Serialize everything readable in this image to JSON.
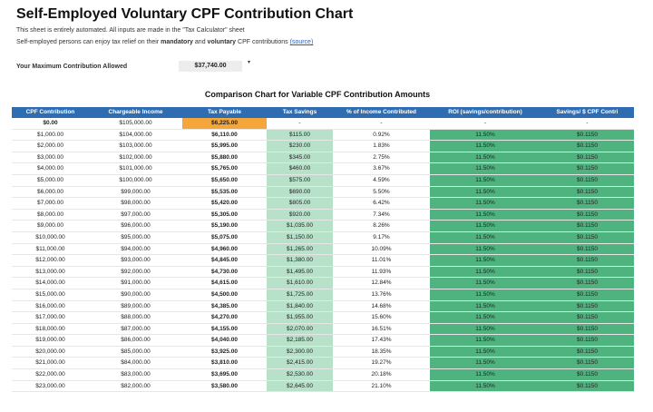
{
  "header": {
    "title": "Self-Employed Voluntary CPF Contribution Chart",
    "note": "This sheet is entirely automated. All inputs are made in the \"Tax Calculator\" sheet",
    "desc_prefix": "Self-employed persons can enjoy tax relief on their",
    "desc_bold1": "mandatory",
    "desc_and": "and",
    "desc_bold2": "voluntary",
    "desc_suffix": "CPF contributions",
    "source_link": "(source)"
  },
  "max_contribution": {
    "label": "Your Maximum Contribution Allowed",
    "value": "$37,740.00",
    "marker": "▾"
  },
  "chart": {
    "title": "Comparison Chart for Variable CPF Contribution Amounts",
    "columns": [
      "CPF Contribution",
      "Chargeable Income",
      "Tax Payable",
      "Tax Savings",
      "% of Income Contributed",
      "ROI (savings/contribution)",
      "Savings/ $ CPF Contri"
    ],
    "rows": [
      [
        "$0.00",
        "$105,000.00",
        "$6,225.00",
        "-",
        "-",
        "-",
        "-"
      ],
      [
        "$1,000.00",
        "$104,000.00",
        "$6,110.00",
        "$115.00",
        "0.92%",
        "11.50%",
        "$0.1150"
      ],
      [
        "$2,000.00",
        "$103,000.00",
        "$5,995.00",
        "$230.00",
        "1.83%",
        "11.50%",
        "$0.1150"
      ],
      [
        "$3,000.00",
        "$102,000.00",
        "$5,880.00",
        "$345.00",
        "2.75%",
        "11.50%",
        "$0.1150"
      ],
      [
        "$4,000.00",
        "$101,000.00",
        "$5,765.00",
        "$460.00",
        "3.67%",
        "11.50%",
        "$0.1150"
      ],
      [
        "$5,000.00",
        "$100,000.00",
        "$5,650.00",
        "$575.00",
        "4.59%",
        "11.50%",
        "$0.1150"
      ],
      [
        "$6,000.00",
        "$99,000.00",
        "$5,535.00",
        "$690.00",
        "5.50%",
        "11.50%",
        "$0.1150"
      ],
      [
        "$7,000.00",
        "$98,000.00",
        "$5,420.00",
        "$805.00",
        "6.42%",
        "11.50%",
        "$0.1150"
      ],
      [
        "$8,000.00",
        "$97,000.00",
        "$5,305.00",
        "$920.00",
        "7.34%",
        "11.50%",
        "$0.1150"
      ],
      [
        "$9,000.00",
        "$96,000.00",
        "$5,190.00",
        "$1,035.00",
        "8.26%",
        "11.50%",
        "$0.1150"
      ],
      [
        "$10,000.00",
        "$95,000.00",
        "$5,075.00",
        "$1,150.00",
        "9.17%",
        "11.50%",
        "$0.1150"
      ],
      [
        "$11,000.00",
        "$94,000.00",
        "$4,960.00",
        "$1,265.00",
        "10.09%",
        "11.50%",
        "$0.1150"
      ],
      [
        "$12,000.00",
        "$93,000.00",
        "$4,845.00",
        "$1,380.00",
        "11.01%",
        "11.50%",
        "$0.1150"
      ],
      [
        "$13,000.00",
        "$92,000.00",
        "$4,730.00",
        "$1,495.00",
        "11.93%",
        "11.50%",
        "$0.1150"
      ],
      [
        "$14,000.00",
        "$91,000.00",
        "$4,615.00",
        "$1,610.00",
        "12.84%",
        "11.50%",
        "$0.1150"
      ],
      [
        "$15,000.00",
        "$90,000.00",
        "$4,500.00",
        "$1,725.00",
        "13.76%",
        "11.50%",
        "$0.1150"
      ],
      [
        "$16,000.00",
        "$89,000.00",
        "$4,385.00",
        "$1,840.00",
        "14.68%",
        "11.50%",
        "$0.1150"
      ],
      [
        "$17,000.00",
        "$88,000.00",
        "$4,270.00",
        "$1,955.00",
        "15.60%",
        "11.50%",
        "$0.1150"
      ],
      [
        "$18,000.00",
        "$87,000.00",
        "$4,155.00",
        "$2,070.00",
        "16.51%",
        "11.50%",
        "$0.1150"
      ],
      [
        "$19,000.00",
        "$86,000.00",
        "$4,040.00",
        "$2,185.00",
        "17.43%",
        "11.50%",
        "$0.1150"
      ],
      [
        "$20,000.00",
        "$85,000.00",
        "$3,925.00",
        "$2,300.00",
        "18.35%",
        "11.50%",
        "$0.1150"
      ],
      [
        "$21,000.00",
        "$84,000.00",
        "$3,810.00",
        "$2,415.00",
        "19.27%",
        "11.50%",
        "$0.1150"
      ],
      [
        "$22,000.00",
        "$83,000.00",
        "$3,695.00",
        "$2,530.00",
        "20.18%",
        "11.50%",
        "$0.1150"
      ],
      [
        "$23,000.00",
        "$82,000.00",
        "$3,580.00",
        "$2,645.00",
        "21.10%",
        "11.50%",
        "$0.1150"
      ]
    ]
  },
  "colors": {
    "header_blue": "#2f6db3",
    "tax_payable_highlight": "#f5a63b",
    "tax_savings_fill": "#b7e1c9",
    "roi_fill": "#4fb380"
  }
}
